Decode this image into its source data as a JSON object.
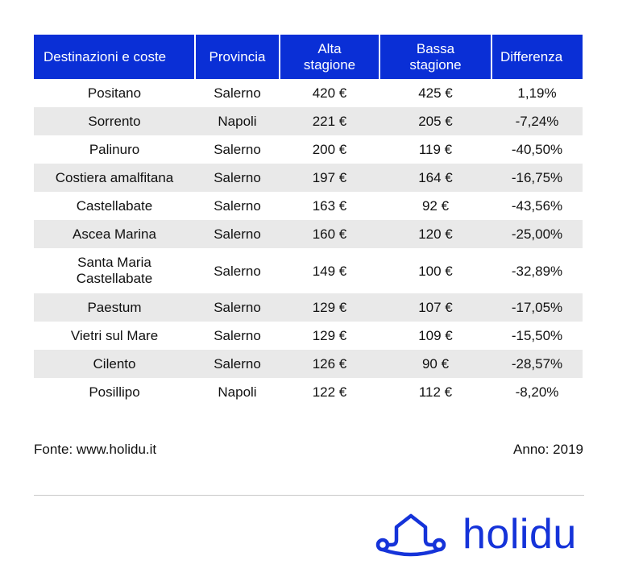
{
  "table": {
    "headers": [
      "Destinazioni e coste",
      "Provincia",
      "Alta stagione",
      "Bassa stagione",
      "Differenza"
    ],
    "rows": [
      [
        "Positano",
        "Salerno",
        "420 €",
        "425 €",
        "1,19%"
      ],
      [
        "Sorrento",
        "Napoli",
        "221 €",
        "205 €",
        "-7,24%"
      ],
      [
        "Palinuro",
        "Salerno",
        "200 €",
        "119 €",
        "-40,50%"
      ],
      [
        "Costiera amalfitana",
        "Salerno",
        "197 €",
        "164 €",
        "-16,75%"
      ],
      [
        "Castellabate",
        "Salerno",
        "163 €",
        "92 €",
        "-43,56%"
      ],
      [
        "Ascea Marina",
        "Salerno",
        "160 €",
        "120 €",
        "-25,00%"
      ],
      [
        "Santa Maria Castellabate",
        "Salerno",
        "149 €",
        "100 €",
        "-32,89%"
      ],
      [
        "Paestum",
        "Salerno",
        "129 €",
        "107 €",
        "-17,05%"
      ],
      [
        "Vietri sul Mare",
        "Salerno",
        "129 €",
        "109 €",
        "-15,50%"
      ],
      [
        "Cilento",
        "Salerno",
        "126 €",
        "90 €",
        "-28,57%"
      ],
      [
        "Posillipo",
        "Napoli",
        "122 €",
        "112 €",
        "-8,20%"
      ]
    ]
  },
  "footer": {
    "source": "Fonte: www.holidu.it",
    "year": "Anno: 2019"
  },
  "logo": {
    "text": "holidu",
    "color": "#1533d9"
  },
  "colors": {
    "header_bg": "#0a2fd6",
    "stripe_bg": "#e9e9e9"
  }
}
